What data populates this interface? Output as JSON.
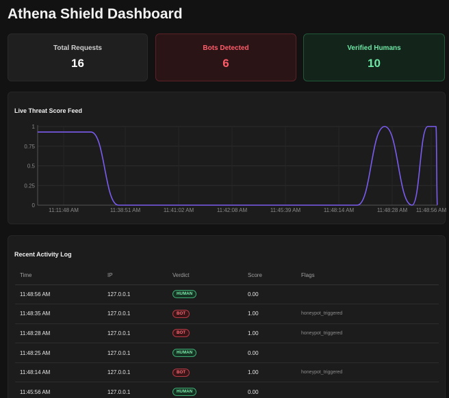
{
  "header": {
    "title": "Athena Shield Dashboard"
  },
  "stats": {
    "total": {
      "label": "Total Requests",
      "value": "16"
    },
    "bots": {
      "label": "Bots Detected",
      "value": "6"
    },
    "humans": {
      "label": "Verified Humans",
      "value": "10"
    }
  },
  "chart_section": {
    "title": "Live Threat Score Feed"
  },
  "chart_data": {
    "type": "line",
    "ylim": [
      0,
      1
    ],
    "yticks": [
      "0",
      "0.25",
      "0.5",
      "0.75",
      "1"
    ],
    "x_tick_labels": [
      "11:11:48 AM",
      "11:38:51 AM",
      "11:41:02 AM",
      "11:42:08 AM",
      "11:45:39 AM",
      "11:48:14 AM",
      "11:48:28 AM",
      "11:48:56 AM"
    ],
    "series": [
      {
        "color": "#7c5cf0",
        "values": [
          0.93,
          0.93,
          0,
          0,
          0,
          0,
          0,
          0,
          0,
          1,
          0,
          1,
          1,
          0
        ]
      }
    ]
  },
  "log": {
    "title": "Recent Activity Log",
    "columns": [
      "Time",
      "IP",
      "Verdict",
      "Score",
      "Flags"
    ],
    "rows": [
      {
        "time": "11:48:56 AM",
        "ip": "127.0.0.1",
        "verdict": "HUMAN",
        "kind": "human",
        "score": "0.00",
        "flags": ""
      },
      {
        "time": "11:48:35 AM",
        "ip": "127.0.0.1",
        "verdict": "BOT",
        "kind": "bot",
        "score": "1.00",
        "flags": "honeypot_triggered"
      },
      {
        "time": "11:48:28 AM",
        "ip": "127.0.0.1",
        "verdict": "BOT",
        "kind": "bot",
        "score": "1.00",
        "flags": "honeypot_triggered"
      },
      {
        "time": "11:48:25 AM",
        "ip": "127.0.0.1",
        "verdict": "HUMAN",
        "kind": "human",
        "score": "0.00",
        "flags": ""
      },
      {
        "time": "11:48:14 AM",
        "ip": "127.0.0.1",
        "verdict": "BOT",
        "kind": "bot",
        "score": "1.00",
        "flags": "honeypot_triggered"
      },
      {
        "time": "11:45:56 AM",
        "ip": "127.0.0.1",
        "verdict": "HUMAN",
        "kind": "human",
        "score": "0.00",
        "flags": ""
      }
    ]
  }
}
